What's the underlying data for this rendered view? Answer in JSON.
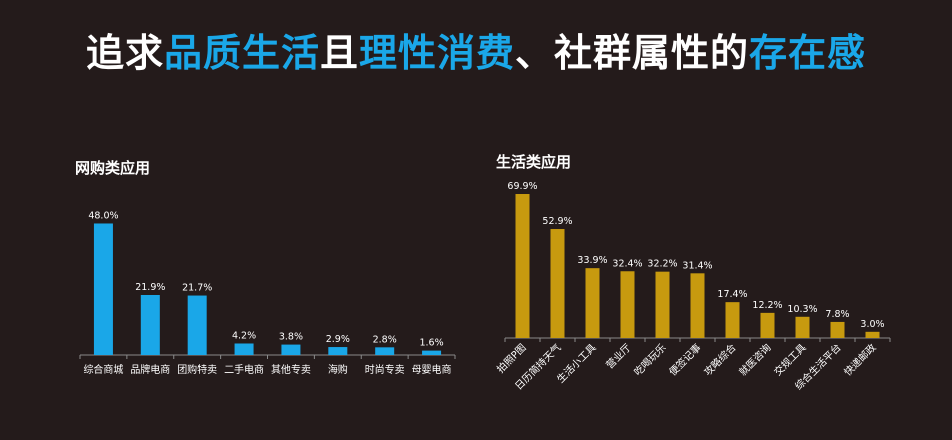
{
  "title": {
    "parts": [
      {
        "text": "追求",
        "style": "w"
      },
      {
        "text": "品质生活",
        "style": "b"
      },
      {
        "text": "且",
        "style": "w"
      },
      {
        "text": "理性消费",
        "style": "b"
      },
      {
        "text": "、社群属性的",
        "style": "w"
      },
      {
        "text": "存在感",
        "style": "b"
      }
    ]
  },
  "chart_data": [
    {
      "type": "bar",
      "title": "网购类应用",
      "categories": [
        "综合商城",
        "品牌电商",
        "团购特卖",
        "二手电商",
        "其他专卖",
        "海购",
        "时尚专卖",
        "母婴电商"
      ],
      "values": [
        48.0,
        21.9,
        21.7,
        4.2,
        3.8,
        2.9,
        2.8,
        1.6
      ],
      "value_labels": [
        "48.0%",
        "21.9%",
        "21.7%",
        "4.2%",
        "3.8%",
        "2.9%",
        "2.8%",
        "1.6%"
      ],
      "ylim": [
        0,
        70
      ],
      "grid": false,
      "color": "#1aa7e8"
    },
    {
      "type": "bar",
      "title": "生活类应用",
      "categories": [
        "拍照P图",
        "日历简持天气",
        "生活小工具",
        "营业厅",
        "吃喝玩乐",
        "便签记事",
        "攻略综合",
        "就医咨询",
        "交规工具",
        "综合生活平台",
        "快递邮政"
      ],
      "values": [
        69.9,
        52.9,
        33.9,
        32.4,
        32.2,
        31.4,
        17.4,
        12.2,
        10.3,
        7.8,
        3.0
      ],
      "value_labels": [
        "69.9%",
        "52.9%",
        "33.9%",
        "32.4%",
        "32.2%",
        "31.4%",
        "17.4%",
        "12.2%",
        "10.3%",
        "7.8%",
        "3.0%"
      ],
      "ylim": [
        0,
        70
      ],
      "grid": false,
      "color": "#c79a0f"
    }
  ]
}
